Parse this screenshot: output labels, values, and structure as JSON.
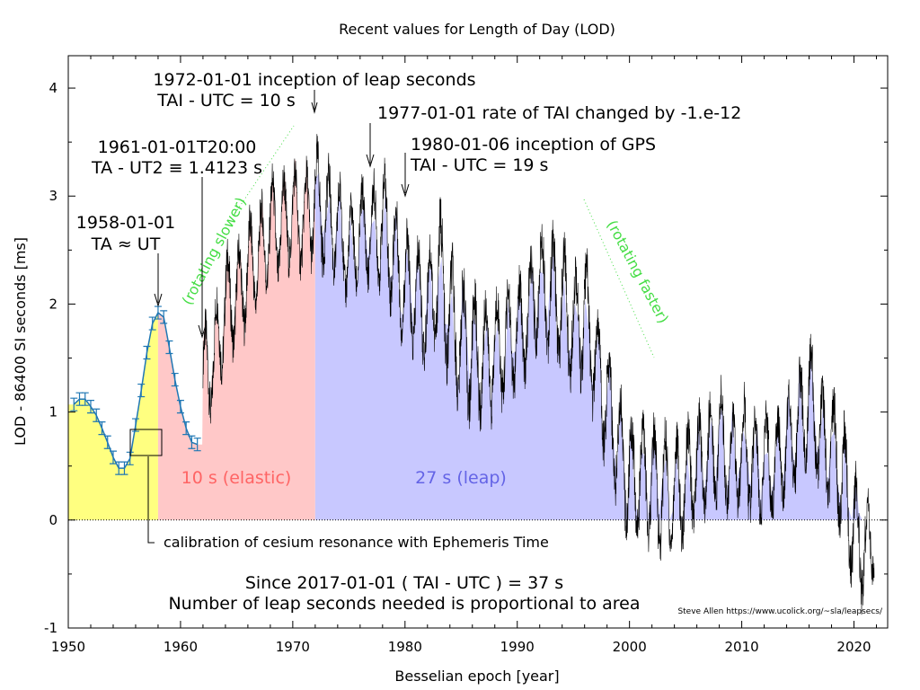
{
  "chart_data": {
    "type": "area",
    "title": "Recent values for Length of Day (LOD)",
    "xlabel": "Besselian epoch [year]",
    "ylabel": "LOD - 86400 SI seconds [ms]",
    "xlim": [
      1950,
      2023
    ],
    "ylim": [
      -1,
      4.3
    ],
    "x_ticks": [
      1950,
      1960,
      1970,
      1980,
      1990,
      2000,
      2010,
      2020
    ],
    "y_ticks": [
      -1,
      0,
      1,
      2,
      3,
      4
    ],
    "x_tick_labels": [
      "1950",
      "1960",
      "1970",
      "1980",
      "1990",
      "2000",
      "2010",
      "2020"
    ],
    "y_tick_labels": [
      "-1",
      "0",
      "1",
      "2",
      "3",
      "4"
    ],
    "grid": false,
    "colors": {
      "ta_region": "#ffff80",
      "elastic_region": "#ffc8c8",
      "leap_region": "#c8c8ff",
      "early_series": "#1f77b4",
      "daily_series": "#000000",
      "elastic_label": "#ff6464",
      "leap_label": "#6464e6",
      "trend_label": "#44dd44"
    },
    "regions": [
      {
        "name": "TA",
        "x": [
          1950,
          1958
        ]
      },
      {
        "name": "elastic",
        "x": [
          1958,
          1972
        ],
        "label": "10 s (elastic)"
      },
      {
        "name": "leap",
        "x": [
          1972,
          2022
        ],
        "label": "27 s (leap)"
      }
    ],
    "early_series": {
      "x": [
        1950.5,
        1951,
        1951.5,
        1952,
        1952.5,
        1953,
        1953.5,
        1954,
        1954.5,
        1955,
        1955.5,
        1956,
        1956.5,
        1957,
        1957.5,
        1958,
        1958.5,
        1959,
        1959.5,
        1960,
        1960.5,
        1961,
        1961.5
      ],
      "y": [
        1.07,
        1.12,
        1.12,
        1.05,
        0.97,
        0.85,
        0.72,
        0.58,
        0.48,
        0.48,
        0.57,
        0.88,
        1.2,
        1.55,
        1.82,
        1.92,
        1.88,
        1.6,
        1.3,
        1.05,
        0.85,
        0.72,
        0.7
      ]
    },
    "daily_series_envelope": {
      "x": [
        1962,
        1963,
        1964,
        1965,
        1966,
        1967,
        1968,
        1969,
        1970,
        1971,
        1972,
        1973,
        1974,
        1975,
        1976,
        1977,
        1978,
        1979,
        1980,
        1981,
        1982,
        1983,
        1984,
        1985,
        1986,
        1987,
        1988,
        1989,
        1990,
        1991,
        1992,
        1993,
        1994,
        1995,
        1996,
        1997,
        1998,
        1999,
        2000,
        2001,
        2002,
        2003,
        2004,
        2005,
        2006,
        2007,
        2008,
        2009,
        2010,
        2011,
        2012,
        2013,
        2014,
        2015,
        2016,
        2017,
        2018,
        2019,
        2020,
        2021,
        2022
      ],
      "max": [
        1.9,
        2.1,
        2.6,
        2.6,
        2.9,
        3.0,
        3.3,
        3.3,
        3.4,
        3.3,
        3.6,
        3.4,
        3.3,
        3.0,
        3.2,
        3.2,
        3.4,
        3.1,
        2.8,
        2.7,
        2.6,
        3.1,
        2.6,
        2.4,
        2.3,
        2.2,
        2.2,
        2.3,
        2.3,
        2.5,
        2.8,
        2.8,
        2.7,
        2.5,
        2.6,
        2.1,
        1.8,
        1.4,
        1.1,
        1.1,
        1.0,
        1.0,
        0.9,
        1.0,
        1.1,
        1.2,
        1.4,
        1.1,
        1.3,
        1.1,
        1.1,
        1.1,
        1.3,
        1.5,
        1.8,
        1.4,
        1.3,
        1.1,
        0.6,
        0.3,
        0.3
      ],
      "min": [
        0.7,
        0.9,
        1.4,
        1.5,
        1.7,
        1.9,
        2.1,
        2.1,
        2.3,
        2.2,
        2.3,
        2.2,
        2.1,
        1.9,
        2.1,
        2.1,
        2.1,
        1.8,
        1.5,
        1.4,
        1.3,
        1.5,
        1.1,
        0.9,
        0.8,
        0.8,
        0.9,
        1.0,
        1.1,
        1.3,
        1.6,
        1.4,
        1.3,
        1.1,
        1.2,
        0.8,
        0.4,
        0.0,
        -0.3,
        -0.3,
        -0.3,
        -0.5,
        -0.4,
        -0.3,
        -0.1,
        -0.1,
        0.1,
        -0.1,
        0.0,
        -0.1,
        -0.1,
        -0.1,
        0.1,
        0.2,
        0.5,
        0.1,
        0.0,
        -0.3,
        -0.8,
        -0.9,
        -0.5
      ]
    },
    "annotations": [
      {
        "lines": [
          "1958-01-01",
          "TA ≈ UT"
        ],
        "x": 1958
      },
      {
        "lines": [
          "1961-01-01T20:00",
          "TA - UT2 ≡ 1.4123 s"
        ],
        "x": 1962
      },
      {
        "lines": [
          "1972-01-01 inception of leap seconds",
          "TAI - UTC = 10 s"
        ],
        "x": 1972
      },
      {
        "lines": [
          "1977-01-01 rate of TAI changed by -1.e-12"
        ],
        "x": 1977
      },
      {
        "lines": [
          "1980-01-06 inception of GPS",
          "TAI - UTC = 19 s"
        ],
        "x": 1980
      }
    ],
    "trend_labels": [
      "(rotating slower)",
      "(rotating faster)"
    ],
    "calibration_note": "calibration of cesium resonance with Ephemeris Time",
    "summary_lines": [
      "Since 2017-01-01 ( TAI - UTC ) = 37 s",
      "Number of leap seconds needed is proportional to area"
    ],
    "credit": "Steve Allen  https://www.ucolick.org/~sla/leapsecs/"
  }
}
